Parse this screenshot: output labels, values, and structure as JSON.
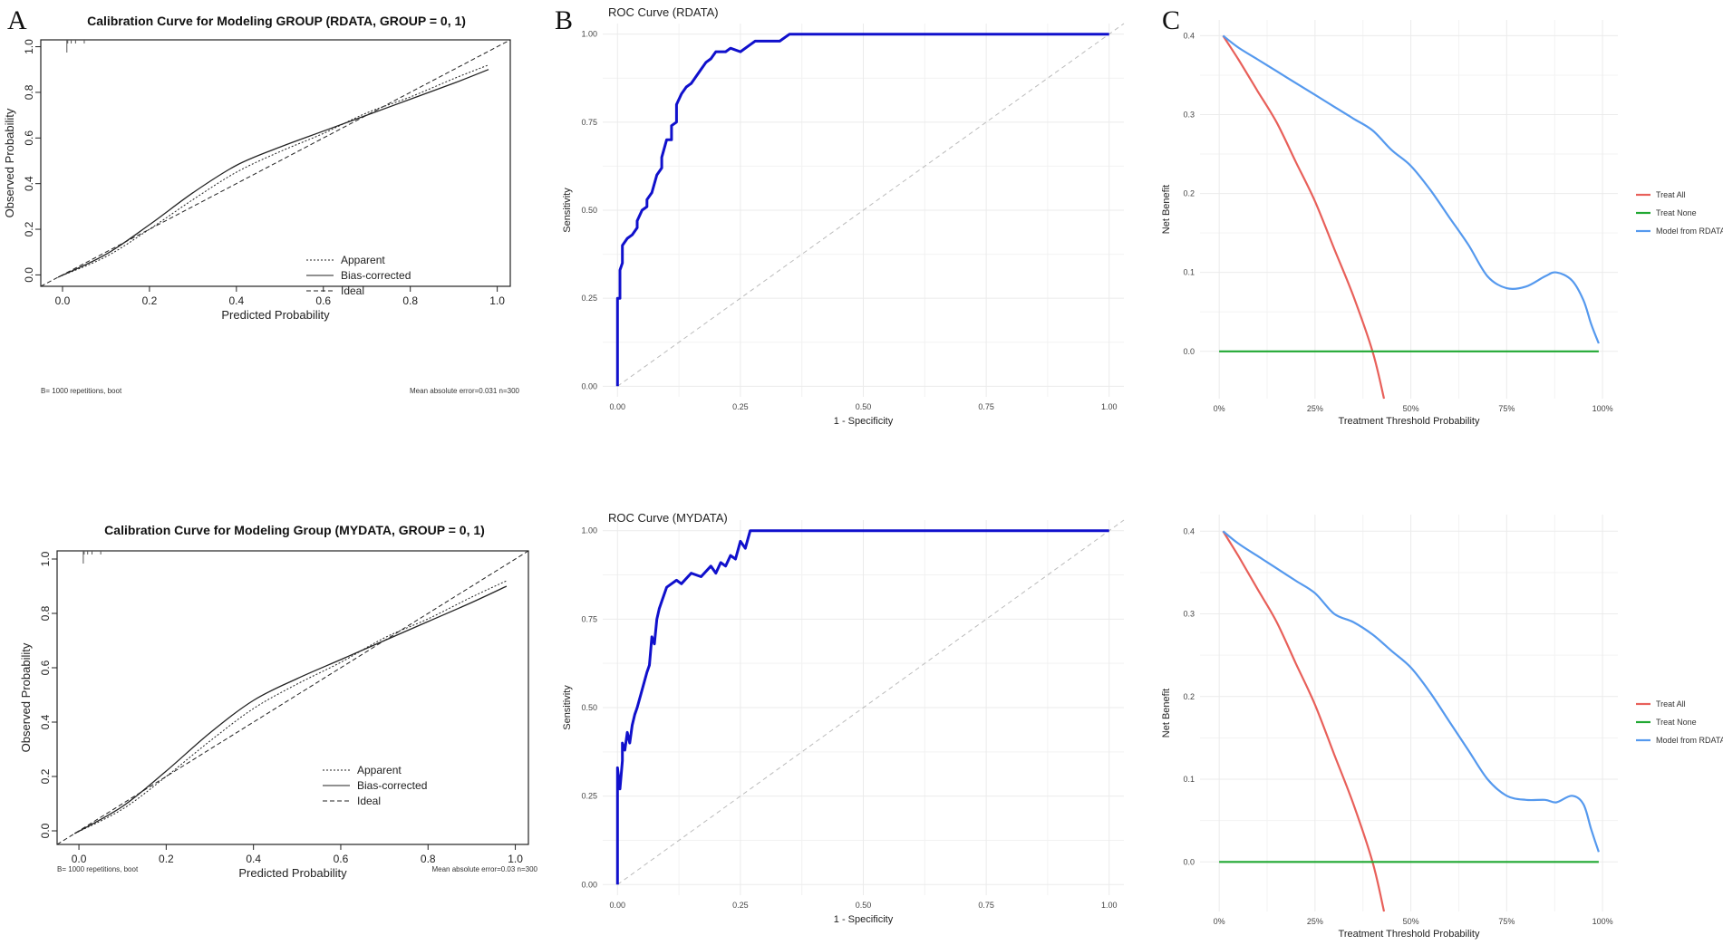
{
  "panel_letters": {
    "a": "A",
    "b": "B",
    "c": "C"
  },
  "colors": {
    "roc_curve": "#1010cc",
    "treat_all": "#e8605a",
    "treat_none": "#21a833",
    "model": "#5599ee",
    "grid": "#ebebeb",
    "diag": "#bbbbbb"
  },
  "chart_data": [
    {
      "id": "cal_rdata",
      "type": "line",
      "title": "Calibration Curve for Modeling GROUP (RDATA, GROUP = 0, 1)",
      "xlabel": "Predicted Probability",
      "ylabel": "Observed Probability",
      "xlim": [
        -0.05,
        1.03
      ],
      "ylim": [
        -0.05,
        1.03
      ],
      "xticks": [
        "0.0",
        "0.2",
        "0.4",
        "0.6",
        "0.8",
        "1.0"
      ],
      "yticks": [
        "0.0",
        "0.2",
        "0.4",
        "0.6",
        "0.8",
        "1.0"
      ],
      "legend": [
        "Apparent",
        "Bias-corrected",
        "Ideal"
      ],
      "footer_left": "B= 1000 repetitions, boot",
      "footer_right": "Mean absolute error=0.031 n=300",
      "series": [
        {
          "name": "Apparent",
          "x": [
            -0.01,
            0.1,
            0.2,
            0.3,
            0.4,
            0.5,
            0.6,
            0.7,
            0.8,
            0.9,
            0.98
          ],
          "y": [
            -0.01,
            0.08,
            0.2,
            0.33,
            0.45,
            0.54,
            0.62,
            0.71,
            0.78,
            0.86,
            0.92
          ]
        },
        {
          "name": "Bias-corrected",
          "x": [
            -0.01,
            0.1,
            0.2,
            0.3,
            0.4,
            0.5,
            0.6,
            0.7,
            0.8,
            0.9,
            0.98
          ],
          "y": [
            -0.01,
            0.09,
            0.22,
            0.36,
            0.48,
            0.56,
            0.63,
            0.7,
            0.77,
            0.84,
            0.9
          ]
        },
        {
          "name": "Ideal",
          "x": [
            -0.05,
            1.03
          ],
          "y": [
            -0.05,
            1.03
          ]
        }
      ]
    },
    {
      "id": "cal_mydata",
      "type": "line",
      "title": "Calibration Curve for Modeling Group (MYDATA, GROUP = 0, 1)",
      "xlabel": "Predicted Probability",
      "ylabel": "Observed Probability",
      "xlim": [
        -0.05,
        1.03
      ],
      "ylim": [
        -0.05,
        1.03
      ],
      "xticks": [
        "0.0",
        "0.2",
        "0.4",
        "0.6",
        "0.8",
        "1.0"
      ],
      "yticks": [
        "0.0",
        "0.2",
        "0.4",
        "0.6",
        "0.8",
        "1.0"
      ],
      "legend": [
        "Apparent",
        "Bias-corrected",
        "Ideal"
      ],
      "footer_left": "B= 1000 repetitions, boot",
      "footer_right": "Mean absolute error=0.03 n=300",
      "series": [
        {
          "name": "Apparent",
          "x": [
            -0.01,
            0.1,
            0.2,
            0.3,
            0.4,
            0.5,
            0.6,
            0.7,
            0.8,
            0.9,
            0.98
          ],
          "y": [
            -0.01,
            0.08,
            0.2,
            0.33,
            0.45,
            0.54,
            0.62,
            0.71,
            0.78,
            0.86,
            0.92
          ]
        },
        {
          "name": "Bias-corrected",
          "x": [
            -0.01,
            0.1,
            0.2,
            0.3,
            0.4,
            0.5,
            0.6,
            0.7,
            0.8,
            0.9,
            0.98
          ],
          "y": [
            -0.01,
            0.09,
            0.22,
            0.36,
            0.48,
            0.56,
            0.63,
            0.7,
            0.77,
            0.84,
            0.9
          ]
        },
        {
          "name": "Ideal",
          "x": [
            -0.05,
            1.03
          ],
          "y": [
            -0.05,
            1.03
          ]
        }
      ]
    },
    {
      "id": "roc_rdata",
      "type": "line",
      "title": "ROC Curve (RDATA)",
      "xlabel": "1 - Specificity",
      "ylabel": "Sensitivity",
      "xlim": [
        -0.03,
        1.03
      ],
      "ylim": [
        -0.03,
        1.03
      ],
      "xticks": [
        "0.00",
        "0.25",
        "0.50",
        "0.75",
        "1.00"
      ],
      "yticks": [
        "0.00",
        "0.25",
        "0.50",
        "0.75",
        "1.00"
      ],
      "series": [
        {
          "name": "ROC",
          "x": [
            0,
            0,
            0.005,
            0.005,
            0.01,
            0.01,
            0.015,
            0.02,
            0.03,
            0.04,
            0.04,
            0.05,
            0.06,
            0.06,
            0.07,
            0.08,
            0.09,
            0.09,
            0.1,
            0.11,
            0.11,
            0.12,
            0.12,
            0.13,
            0.14,
            0.15,
            0.16,
            0.17,
            0.18,
            0.19,
            0.2,
            0.22,
            0.23,
            0.25,
            0.27,
            0.28,
            0.33,
            0.35,
            1.0
          ],
          "y": [
            0,
            0.25,
            0.25,
            0.33,
            0.35,
            0.4,
            0.41,
            0.42,
            0.43,
            0.45,
            0.47,
            0.5,
            0.51,
            0.53,
            0.55,
            0.6,
            0.62,
            0.65,
            0.7,
            0.7,
            0.74,
            0.75,
            0.8,
            0.83,
            0.85,
            0.86,
            0.88,
            0.9,
            0.92,
            0.93,
            0.95,
            0.95,
            0.96,
            0.95,
            0.97,
            0.98,
            0.98,
            1.0,
            1.0
          ]
        },
        {
          "name": "Diagonal",
          "x": [
            0,
            1.03
          ],
          "y": [
            0,
            1.03
          ]
        }
      ]
    },
    {
      "id": "roc_mydata",
      "type": "line",
      "title": "ROC Curve (MYDATA)",
      "xlabel": "1 - Specificity",
      "ylabel": "Sensitivity",
      "xlim": [
        -0.03,
        1.03
      ],
      "ylim": [
        -0.03,
        1.03
      ],
      "xticks": [
        "0.00",
        "0.25",
        "0.50",
        "0.75",
        "1.00"
      ],
      "yticks": [
        "0.00",
        "0.25",
        "0.50",
        "0.75",
        "1.00"
      ],
      "series": [
        {
          "name": "ROC",
          "x": [
            0,
            0,
            0.005,
            0.01,
            0.01,
            0.015,
            0.02,
            0.025,
            0.03,
            0.035,
            0.04,
            0.05,
            0.06,
            0.065,
            0.07,
            0.075,
            0.08,
            0.085,
            0.09,
            0.1,
            0.12,
            0.13,
            0.15,
            0.17,
            0.19,
            0.2,
            0.21,
            0.22,
            0.23,
            0.24,
            0.25,
            0.26,
            0.27,
            1.0
          ],
          "y": [
            0,
            0.33,
            0.27,
            0.35,
            0.4,
            0.38,
            0.43,
            0.4,
            0.45,
            0.48,
            0.5,
            0.55,
            0.6,
            0.62,
            0.7,
            0.68,
            0.75,
            0.78,
            0.8,
            0.84,
            0.86,
            0.85,
            0.88,
            0.87,
            0.9,
            0.88,
            0.91,
            0.9,
            0.93,
            0.92,
            0.97,
            0.95,
            1.0,
            1.0
          ]
        },
        {
          "name": "Diagonal",
          "x": [
            0,
            1.03
          ],
          "y": [
            0,
            1.03
          ]
        }
      ]
    },
    {
      "id": "dca_rdata",
      "type": "line",
      "title": "",
      "xlabel": "Treatment Threshold Probability",
      "ylabel": "Net Benefit",
      "xlim": [
        -0.05,
        1.04
      ],
      "ylim": [
        -0.06,
        0.42
      ],
      "xticks": [
        "0%",
        "25%",
        "50%",
        "75%",
        "100%"
      ],
      "yticks": [
        "0.0",
        "0.1",
        "0.2",
        "0.3",
        "0.4"
      ],
      "legend": [
        "Treat All",
        "Treat None",
        "Model from RDATA"
      ],
      "series": [
        {
          "name": "Treat All",
          "x": [
            0.01,
            0.05,
            0.1,
            0.15,
            0.2,
            0.25,
            0.3,
            0.35,
            0.4,
            0.43
          ],
          "y": [
            0.4,
            0.37,
            0.33,
            0.29,
            0.24,
            0.19,
            0.13,
            0.07,
            0.0,
            -0.06
          ]
        },
        {
          "name": "Treat None",
          "x": [
            0.0,
            0.99
          ],
          "y": [
            0.0,
            0.0
          ]
        },
        {
          "name": "Model from RDATA",
          "x": [
            0.01,
            0.05,
            0.1,
            0.15,
            0.2,
            0.25,
            0.3,
            0.35,
            0.4,
            0.45,
            0.5,
            0.55,
            0.6,
            0.65,
            0.7,
            0.75,
            0.8,
            0.85,
            0.88,
            0.92,
            0.95,
            0.97,
            0.99
          ],
          "y": [
            0.4,
            0.385,
            0.37,
            0.355,
            0.34,
            0.325,
            0.31,
            0.295,
            0.28,
            0.255,
            0.235,
            0.205,
            0.17,
            0.135,
            0.095,
            0.08,
            0.082,
            0.095,
            0.1,
            0.09,
            0.065,
            0.035,
            0.01
          ]
        }
      ]
    },
    {
      "id": "dca_mydata",
      "type": "line",
      "title": "",
      "xlabel": "Treatment Threshold Probability",
      "ylabel": "Net Benefit",
      "xlim": [
        -0.05,
        1.04
      ],
      "ylim": [
        -0.06,
        0.42
      ],
      "xticks": [
        "0%",
        "25%",
        "50%",
        "75%",
        "100%"
      ],
      "yticks": [
        "0.0",
        "0.1",
        "0.2",
        "0.3",
        "0.4"
      ],
      "legend": [
        "Treat All",
        "Treat None",
        "Model from RDATA"
      ],
      "series": [
        {
          "name": "Treat All",
          "x": [
            0.01,
            0.05,
            0.1,
            0.15,
            0.2,
            0.25,
            0.3,
            0.35,
            0.4,
            0.43
          ],
          "y": [
            0.4,
            0.37,
            0.33,
            0.29,
            0.24,
            0.19,
            0.13,
            0.07,
            0.0,
            -0.06
          ]
        },
        {
          "name": "Treat None",
          "x": [
            0.0,
            0.99
          ],
          "y": [
            0.0,
            0.0
          ]
        },
        {
          "name": "Model from RDATA",
          "x": [
            0.01,
            0.05,
            0.1,
            0.15,
            0.2,
            0.25,
            0.3,
            0.35,
            0.4,
            0.45,
            0.5,
            0.55,
            0.6,
            0.65,
            0.7,
            0.75,
            0.8,
            0.85,
            0.88,
            0.92,
            0.95,
            0.97,
            0.99
          ],
          "y": [
            0.4,
            0.385,
            0.37,
            0.355,
            0.34,
            0.325,
            0.3,
            0.29,
            0.275,
            0.255,
            0.235,
            0.205,
            0.17,
            0.135,
            0.1,
            0.08,
            0.075,
            0.075,
            0.072,
            0.08,
            0.07,
            0.04,
            0.012
          ]
        }
      ]
    }
  ]
}
